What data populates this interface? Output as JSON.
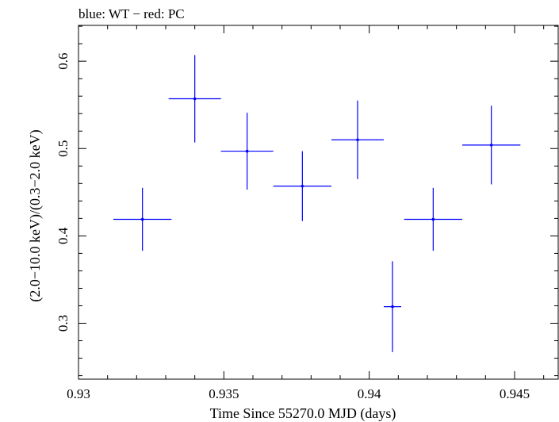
{
  "chart_data": {
    "type": "scatter",
    "title": "blue: WT − red: PC",
    "xlabel": "Time Since 55270.0 MJD (days)",
    "ylabel": "(2.0−10.0 keV)/(0.3−2.0 keV)",
    "xlim": [
      0.93,
      0.9465
    ],
    "ylim": [
      0.236,
      0.641
    ],
    "x_ticks": [
      0.93,
      0.935,
      0.94,
      0.945
    ],
    "x_tick_labels": [
      "0.93",
      "0.935",
      "0.94",
      "0.945"
    ],
    "y_ticks": [
      0.3,
      0.4,
      0.5,
      0.6
    ],
    "y_tick_labels": [
      "0.3",
      "0.4",
      "0.5",
      "0.6"
    ],
    "grid": false,
    "legend": "none",
    "series": [
      {
        "color": "#0000ff",
        "points": [
          {
            "x": 0.9322,
            "xerr": 0.001,
            "y": 0.419,
            "yerr": 0.036
          },
          {
            "x": 0.934,
            "xerr": 0.0009,
            "y": 0.557,
            "yerr": 0.05
          },
          {
            "x": 0.9358,
            "xerr": 0.0009,
            "y": 0.497,
            "yerr": 0.044
          },
          {
            "x": 0.9377,
            "xerr": 0.001,
            "y": 0.457,
            "yerr": 0.04
          },
          {
            "x": 0.9396,
            "xerr": 0.0009,
            "y": 0.51,
            "yerr": 0.045
          },
          {
            "x": 0.9408,
            "xerr": 0.0003,
            "y": 0.319,
            "yerr": 0.052
          },
          {
            "x": 0.9422,
            "xerr": 0.001,
            "y": 0.419,
            "yerr": 0.036
          },
          {
            "x": 0.9442,
            "xerr": 0.001,
            "y": 0.504,
            "yerr": 0.045
          }
        ]
      }
    ]
  }
}
